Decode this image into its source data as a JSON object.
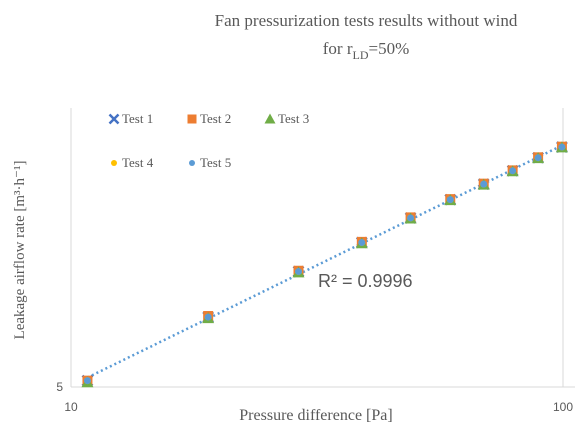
{
  "chart_data": {
    "type": "scatter",
    "title": "Fan pressurization tests results without wind",
    "subtitle": {
      "text": "for r",
      "subscript": "LD",
      "suffix": "=50%"
    },
    "x_label": "Pressure difference [Pa]",
    "y_label": "Leakage airflow rate [m³·h⁻¹]",
    "annotation": "R² = 0.9996",
    "x": [
      10.8,
      19,
      29,
      39,
      49,
      59,
      69,
      79,
      89,
      99.5
    ],
    "series": [
      {
        "name": "Test 1",
        "color": "#4472c4",
        "marker": "x",
        "values": [
          5.2,
          7.7,
          10.2,
          12.2,
          14.2,
          15.9,
          17.5,
          19.0,
          20.6,
          22.0
        ]
      },
      {
        "name": "Test 2",
        "color": "#ed7d31",
        "marker": "square",
        "values": [
          5.2,
          7.75,
          10.25,
          12.25,
          14.25,
          15.95,
          17.55,
          19.05,
          20.65,
          22.05
        ]
      },
      {
        "name": "Test 3",
        "color": "#70ad47",
        "marker": "triangle",
        "values": [
          5.15,
          7.65,
          10.15,
          12.15,
          14.15,
          15.85,
          17.45,
          18.95,
          20.55,
          21.95
        ]
      },
      {
        "name": "Test 4",
        "color": "#ffc000",
        "marker": "circle",
        "values": [
          5.2,
          7.7,
          10.2,
          12.2,
          14.2,
          15.9,
          17.5,
          19.0,
          20.6,
          22.0
        ]
      },
      {
        "name": "Test 5",
        "color": "#5b9bd5",
        "marker": "circle",
        "values": [
          5.2,
          7.7,
          10.2,
          12.2,
          14.2,
          15.9,
          17.5,
          19.0,
          20.6,
          22.0
        ]
      }
    ],
    "trendline_color": "#5b9bd5",
    "xscale": "log",
    "yscale": "log",
    "xlim": [
      10,
      100
    ],
    "xticks": [
      10,
      100
    ],
    "ylim": [
      5,
      28
    ],
    "yticks": [
      5
    ],
    "grid": true
  }
}
